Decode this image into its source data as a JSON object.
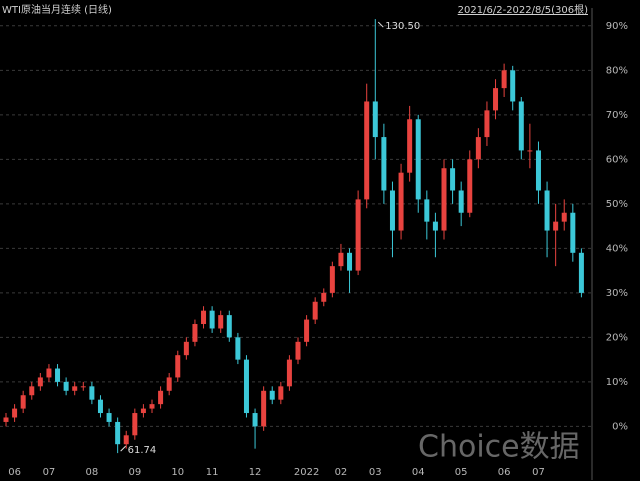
{
  "chart_data": {
    "type": "candlestick",
    "title": "WTI原油当月连续 (日线)",
    "range_label": "2021/6/2-2022/8/5(306根)",
    "watermark": "Choice数据",
    "high_label": "130.50",
    "low_label": "61.74",
    "up_color": "#e8433f",
    "down_color": "#3cc8d8",
    "ylim": [
      -8,
      94
    ],
    "yticks": [
      {
        "value": 0,
        "label": "0%"
      },
      {
        "value": 10,
        "label": "10%"
      },
      {
        "value": 20,
        "label": "20%"
      },
      {
        "value": 30,
        "label": "30%"
      },
      {
        "value": 40,
        "label": "40%"
      },
      {
        "value": 50,
        "label": "50%"
      },
      {
        "value": 60,
        "label": "60%"
      },
      {
        "value": 70,
        "label": "70%"
      },
      {
        "value": 80,
        "label": "80%"
      },
      {
        "value": 90,
        "label": "90%"
      }
    ],
    "grid": true,
    "categories": [
      null,
      "06",
      null,
      null,
      null,
      "07",
      null,
      null,
      null,
      null,
      "08",
      null,
      null,
      null,
      null,
      "09",
      null,
      null,
      null,
      null,
      "10",
      null,
      null,
      null,
      "11",
      null,
      null,
      null,
      null,
      "12",
      null,
      null,
      null,
      null,
      null,
      "2022",
      null,
      null,
      null,
      "02",
      null,
      null,
      null,
      "03",
      null,
      null,
      null,
      null,
      "04",
      null,
      null,
      null,
      null,
      "05",
      null,
      null,
      null,
      null,
      "06",
      null,
      null,
      null,
      "07",
      null,
      null,
      null,
      null,
      null
    ],
    "ohlc": [
      [
        1,
        3,
        0,
        2
      ],
      [
        2,
        5,
        1,
        4
      ],
      [
        4,
        8,
        3,
        7
      ],
      [
        7,
        10,
        6,
        9
      ],
      [
        9,
        12,
        8,
        11
      ],
      [
        11,
        14,
        10,
        13
      ],
      [
        13,
        14,
        9,
        10
      ],
      [
        10,
        11,
        7,
        8
      ],
      [
        8,
        10,
        7,
        9
      ],
      [
        9,
        10,
        8,
        9
      ],
      [
        9,
        10,
        5,
        6
      ],
      [
        6,
        7,
        2,
        3
      ],
      [
        3,
        4,
        0,
        1
      ],
      [
        1,
        2,
        -6,
        -4
      ],
      [
        -4,
        -1,
        -5,
        -2
      ],
      [
        -2,
        4,
        -3,
        3
      ],
      [
        3,
        5,
        2,
        4
      ],
      [
        4,
        6,
        3,
        5
      ],
      [
        5,
        9,
        4,
        8
      ],
      [
        8,
        12,
        7,
        11
      ],
      [
        11,
        17,
        10,
        16
      ],
      [
        16,
        20,
        15,
        19
      ],
      [
        19,
        24,
        18,
        23
      ],
      [
        23,
        27,
        22,
        26
      ],
      [
        26,
        27,
        21,
        22
      ],
      [
        22,
        26,
        21,
        25
      ],
      [
        25,
        26,
        19,
        20
      ],
      [
        20,
        21,
        14,
        15
      ],
      [
        15,
        16,
        2,
        3
      ],
      [
        3,
        4,
        -5,
        0
      ],
      [
        0,
        9,
        -1,
        8
      ],
      [
        8,
        9,
        5,
        6
      ],
      [
        6,
        10,
        5,
        9
      ],
      [
        9,
        16,
        8,
        15
      ],
      [
        15,
        20,
        14,
        19
      ],
      [
        19,
        25,
        18,
        24
      ],
      [
        24,
        29,
        23,
        28
      ],
      [
        28,
        31,
        27,
        30
      ],
      [
        30,
        37,
        29,
        36
      ],
      [
        36,
        41,
        35,
        39
      ],
      [
        39,
        40,
        30,
        35
      ],
      [
        35,
        53,
        34,
        51
      ],
      [
        51,
        77,
        49,
        73
      ],
      [
        73,
        91.5,
        60,
        65
      ],
      [
        65,
        68,
        50,
        53
      ],
      [
        53,
        55,
        38,
        44
      ],
      [
        44,
        59,
        42,
        57
      ],
      [
        57,
        72,
        55,
        69
      ],
      [
        69,
        70,
        48,
        51
      ],
      [
        51,
        53,
        42,
        46
      ],
      [
        46,
        48,
        38,
        44
      ],
      [
        44,
        60,
        42,
        58
      ],
      [
        58,
        60,
        50,
        53
      ],
      [
        53,
        55,
        45,
        48
      ],
      [
        48,
        62,
        47,
        60
      ],
      [
        60,
        67,
        58,
        65
      ],
      [
        65,
        73,
        63,
        71
      ],
      [
        71,
        78,
        69,
        76
      ],
      [
        76,
        81.5,
        74,
        80
      ],
      [
        80,
        81,
        71,
        73
      ],
      [
        73,
        74,
        60,
        62
      ],
      [
        62,
        68,
        58,
        62
      ],
      [
        62,
        64,
        50,
        53
      ],
      [
        53,
        55,
        38,
        44
      ],
      [
        44,
        50,
        36,
        46
      ],
      [
        46,
        51,
        44,
        48
      ],
      [
        48,
        50,
        37,
        39
      ],
      [
        39,
        40,
        29,
        30
      ]
    ]
  }
}
